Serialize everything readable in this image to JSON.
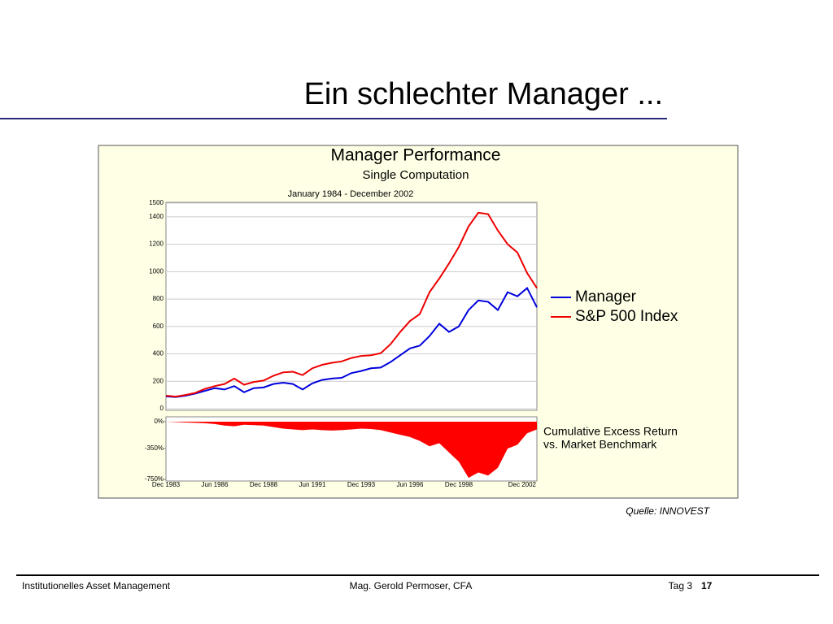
{
  "slide": {
    "title": "Ein schlechter Manager ...",
    "source": "Quelle: INNOVEST",
    "footer": {
      "left": "Institutionelles Asset Management",
      "center": "Mag. Gerold Permoser, CFA",
      "day": "Tag 3",
      "page": "17"
    }
  },
  "chart_data": [
    {
      "type": "line",
      "title": "Manager Performance",
      "subtitle": "Single Computation",
      "period": "January 1984 - December 2002",
      "ylim": [
        0,
        1500
      ],
      "yticks": [
        0,
        200,
        400,
        600,
        800,
        1000,
        1200,
        1400,
        1500
      ],
      "legend": "right",
      "series": [
        {
          "name": "Manager",
          "color": "#0000dd",
          "values": [
            90,
            85,
            95,
            110,
            130,
            150,
            140,
            165,
            120,
            150,
            155,
            180,
            190,
            180,
            140,
            185,
            210,
            220,
            225,
            260,
            275,
            295,
            300,
            340,
            390,
            440,
            460,
            530,
            620,
            560,
            600,
            720,
            790,
            780,
            720,
            850,
            820,
            880,
            740
          ]
        },
        {
          "name": "S&P 500 Index",
          "color": "#ee0000",
          "values": [
            95,
            88,
            100,
            115,
            145,
            165,
            180,
            220,
            175,
            195,
            205,
            240,
            265,
            270,
            245,
            295,
            320,
            335,
            345,
            370,
            385,
            390,
            405,
            470,
            560,
            640,
            690,
            850,
            950,
            1060,
            1180,
            1330,
            1430,
            1420,
            1300,
            1200,
            1140,
            990,
            880
          ]
        }
      ]
    },
    {
      "type": "area",
      "annotation": [
        "Cumulative Excess Return",
        "vs. Market Benchmark"
      ],
      "color": "#ff0000",
      "ylim": [
        -750,
        0
      ],
      "yticks": [
        {
          "value": 0,
          "label": "0%"
        },
        {
          "value": -350,
          "label": "-350%"
        },
        {
          "value": -750,
          "label": "-750%"
        }
      ],
      "categories": [
        "Dec 1983",
        null,
        null,
        null,
        null,
        "Jun 1986",
        null,
        null,
        null,
        null,
        "Dec 1988",
        null,
        null,
        null,
        null,
        "Jun 1991",
        null,
        null,
        null,
        null,
        "Dec 1993",
        null,
        null,
        null,
        null,
        "Jun 1996",
        null,
        null,
        null,
        null,
        "Dec 1998",
        null,
        null,
        null,
        null,
        null,
        null,
        null,
        "Dec 2002"
      ],
      "values": [
        0,
        -5,
        -10,
        -15,
        -20,
        -30,
        -50,
        -60,
        -40,
        -45,
        -50,
        -70,
        -90,
        -100,
        -110,
        -100,
        -110,
        -115,
        -110,
        -100,
        -90,
        -95,
        -110,
        -140,
        -170,
        -200,
        -250,
        -320,
        -280,
        -400,
        -520,
        -730,
        -660,
        -700,
        -600,
        -350,
        -300,
        -150,
        -100
      ]
    }
  ]
}
